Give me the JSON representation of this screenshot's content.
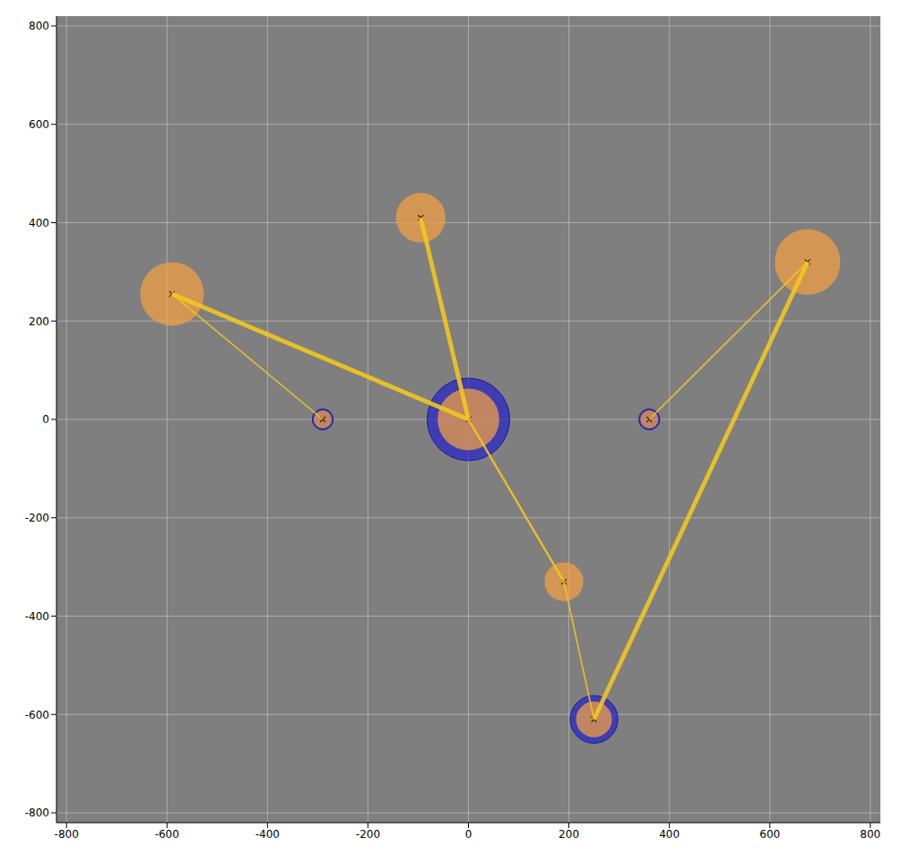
{
  "chart_data": {
    "type": "scatter",
    "grid": true,
    "marker": "x",
    "color": "#f5a142",
    "xlim": [
      -820,
      820
    ],
    "ylim": [
      -820,
      820
    ],
    "xticks": [
      -800,
      -600,
      -400,
      -200,
      0,
      200,
      400,
      600,
      800
    ],
    "yticks": [
      -800,
      -600,
      -400,
      -200,
      0,
      200,
      400,
      600,
      800
    ],
    "nodes": [
      {
        "x": 0,
        "y": 0,
        "radius": 62,
        "ring_radius": 83
      },
      {
        "x": -290,
        "y": 0,
        "radius": 18,
        "ring_radius": 21
      },
      {
        "x": 360,
        "y": 0,
        "radius": 18,
        "ring_radius": 21
      },
      {
        "x": 250,
        "y": -610,
        "radius": 36,
        "ring_radius": 48
      },
      {
        "x": -590,
        "y": 255,
        "radius": 64
      },
      {
        "x": -95,
        "y": 410,
        "radius": 50
      },
      {
        "x": 675,
        "y": 320,
        "radius": 66
      },
      {
        "x": 190,
        "y": -330,
        "radius": 39
      }
    ],
    "edges": [
      {
        "from": 4,
        "to": 0,
        "weight": 3
      },
      {
        "from": 4,
        "to": 1,
        "weight": 1
      },
      {
        "from": 5,
        "to": 0,
        "weight": 3
      },
      {
        "from": 6,
        "to": 2,
        "weight": 1
      },
      {
        "from": 6,
        "to": 3,
        "weight": 3
      },
      {
        "from": 0,
        "to": 7,
        "weight": 1.5
      },
      {
        "from": 7,
        "to": 3,
        "weight": 1
      }
    ]
  }
}
